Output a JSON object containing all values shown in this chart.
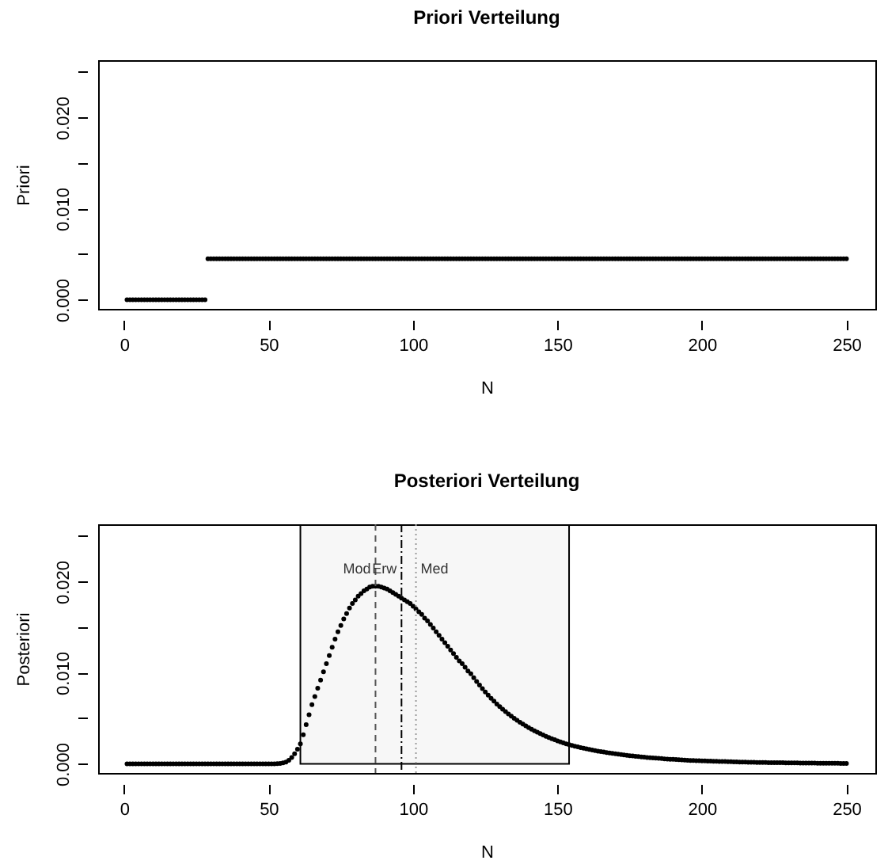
{
  "chart_data": [
    {
      "type": "scatter",
      "title": "Priori Verteilung",
      "xlabel": "N",
      "ylabel": "Priori",
      "xlim": [
        -9,
        260
      ],
      "ylim": [
        -0.001,
        0.0263
      ],
      "xticks": [
        0,
        50,
        100,
        150,
        200,
        250
      ],
      "yticks": [
        {
          "value": 0,
          "label": "0.000"
        },
        {
          "value": 0.005,
          "label": null
        },
        {
          "value": 0.01,
          "label": "0.010"
        },
        {
          "value": 0.015,
          "label": null
        },
        {
          "value": 0.02,
          "label": "0.020"
        },
        {
          "value": 0.025,
          "label": null
        }
      ],
      "marker": "circle",
      "x": [
        1,
        2,
        3,
        4,
        5,
        6,
        7,
        8,
        9,
        10,
        11,
        12,
        13,
        14,
        15,
        16,
        17,
        18,
        19,
        20,
        21,
        22,
        23,
        24,
        25,
        26,
        27,
        28,
        29,
        30,
        31,
        32,
        33,
        34,
        35,
        36,
        37,
        38,
        39,
        40,
        41,
        42,
        43,
        44,
        45,
        46,
        47,
        48,
        49,
        50,
        51,
        52,
        53,
        54,
        55,
        56,
        57,
        58,
        59,
        60,
        61,
        62,
        63,
        64,
        65,
        66,
        67,
        68,
        69,
        70,
        71,
        72,
        73,
        74,
        75,
        76,
        77,
        78,
        79,
        80,
        81,
        82,
        83,
        84,
        85,
        86,
        87,
        88,
        89,
        90,
        91,
        92,
        93,
        94,
        95,
        96,
        97,
        98,
        99,
        100,
        101,
        102,
        103,
        104,
        105,
        106,
        107,
        108,
        109,
        110,
        111,
        112,
        113,
        114,
        115,
        116,
        117,
        118,
        119,
        120,
        121,
        122,
        123,
        124,
        125,
        126,
        127,
        128,
        129,
        130,
        131,
        132,
        133,
        134,
        135,
        136,
        137,
        138,
        139,
        140,
        141,
        142,
        143,
        144,
        145,
        146,
        147,
        148,
        149,
        150,
        151,
        152,
        153,
        154,
        155,
        156,
        157,
        158,
        159,
        160,
        161,
        162,
        163,
        164,
        165,
        166,
        167,
        168,
        169,
        170,
        171,
        172,
        173,
        174,
        175,
        176,
        177,
        178,
        179,
        180,
        181,
        182,
        183,
        184,
        185,
        186,
        187,
        188,
        189,
        190,
        191,
        192,
        193,
        194,
        195,
        196,
        197,
        198,
        199,
        200,
        201,
        202,
        203,
        204,
        205,
        206,
        207,
        208,
        209,
        210,
        211,
        212,
        213,
        214,
        215,
        216,
        217,
        218,
        219,
        220,
        221,
        222,
        223,
        224,
        225,
        226,
        227,
        228,
        229,
        230,
        231,
        232,
        233,
        234,
        235,
        236,
        237,
        238,
        239,
        240,
        241,
        242,
        243,
        244,
        245,
        246,
        247,
        248,
        249,
        250
      ],
      "series": [
        {
          "color": "#000000",
          "values": [
            0,
            0,
            0,
            0,
            0,
            0,
            0,
            0,
            0,
            0,
            0,
            0,
            0,
            0,
            0,
            0,
            0,
            0,
            0,
            0,
            0,
            0,
            0,
            0,
            0,
            0,
            0,
            0,
            0.0045,
            0.0045,
            0.0045,
            0.0045,
            0.0045,
            0.0045,
            0.0045,
            0.0045,
            0.0045,
            0.0045,
            0.0045,
            0.0045,
            0.0045,
            0.0045,
            0.0045,
            0.0045,
            0.0045,
            0.0045,
            0.0045,
            0.0045,
            0.0045,
            0.0045,
            0.0045,
            0.0045,
            0.0045,
            0.0045,
            0.0045,
            0.0045,
            0.0045,
            0.0045,
            0.0045,
            0.0045,
            0.0045,
            0.0045,
            0.0045,
            0.0045,
            0.0045,
            0.0045,
            0.0045,
            0.0045,
            0.0045,
            0.0045,
            0.0045,
            0.0045,
            0.0045,
            0.0045,
            0.0045,
            0.0045,
            0.0045,
            0.0045,
            0.0045,
            0.0045,
            0.0045,
            0.0045,
            0.0045,
            0.0045,
            0.0045,
            0.0045,
            0.0045,
            0.0045,
            0.0045,
            0.0045,
            0.0045,
            0.0045,
            0.0045,
            0.0045,
            0.0045,
            0.0045,
            0.0045,
            0.0045,
            0.0045,
            0.0045,
            0.0045,
            0.0045,
            0.0045,
            0.0045,
            0.0045,
            0.0045,
            0.0045,
            0.0045,
            0.0045,
            0.0045,
            0.0045,
            0.0045,
            0.0045,
            0.0045,
            0.0045,
            0.0045,
            0.0045,
            0.0045,
            0.0045,
            0.0045,
            0.0045,
            0.0045,
            0.0045,
            0.0045,
            0.0045,
            0.0045,
            0.0045,
            0.0045,
            0.0045,
            0.0045,
            0.0045,
            0.0045,
            0.0045,
            0.0045,
            0.0045,
            0.0045,
            0.0045,
            0.0045,
            0.0045,
            0.0045,
            0.0045,
            0.0045,
            0.0045,
            0.0045,
            0.0045,
            0.0045,
            0.0045,
            0.0045,
            0.0045,
            0.0045,
            0.0045,
            0.0045,
            0.0045,
            0.0045,
            0.0045,
            0.0045,
            0.0045,
            0.0045,
            0.0045,
            0.0045,
            0.0045,
            0.0045,
            0.0045,
            0.0045,
            0.0045,
            0.0045,
            0.0045,
            0.0045,
            0.0045,
            0.0045,
            0.0045,
            0.0045,
            0.0045,
            0.0045,
            0.0045,
            0.0045,
            0.0045,
            0.0045,
            0.0045,
            0.0045,
            0.0045,
            0.0045,
            0.0045,
            0.0045,
            0.0045,
            0.0045,
            0.0045,
            0.0045,
            0.0045,
            0.0045,
            0.0045,
            0.0045,
            0.0045,
            0.0045,
            0.0045,
            0.0045,
            0.0045,
            0.0045,
            0.0045,
            0.0045,
            0.0045,
            0.0045,
            0.0045,
            0.0045,
            0.0045,
            0.0045,
            0.0045,
            0.0045,
            0.0045,
            0.0045,
            0.0045,
            0.0045,
            0.0045,
            0.0045,
            0.0045,
            0.0045,
            0.0045,
            0.0045,
            0.0045,
            0.0045,
            0.0045,
            0.0045,
            0.0045,
            0.0045,
            0.0045,
            0.0045,
            0.0045,
            0.0045,
            0.0045,
            0.0045,
            0.0045,
            0.0045,
            0.0045,
            0.0045,
            0.0045,
            0.0045,
            0.0045,
            0.0045,
            0.0045,
            0.0045,
            0.0045,
            0.0045,
            0.0045,
            0.0045,
            0.0045,
            0.0045,
            0.0045,
            0.0045,
            0.0045,
            0.0045
          ]
        }
      ]
    },
    {
      "type": "scatter",
      "title": "Posteriori Verteilung",
      "xlabel": "N",
      "ylabel": "Posteriori",
      "xlim": [
        -9,
        260
      ],
      "ylim": [
        -0.001,
        0.0263
      ],
      "xticks": [
        0,
        50,
        100,
        150,
        200,
        250
      ],
      "yticks": [
        {
          "value": 0,
          "label": "0.000"
        },
        {
          "value": 0.005,
          "label": null
        },
        {
          "value": 0.01,
          "label": "0.010"
        },
        {
          "value": 0.015,
          "label": null
        },
        {
          "value": 0.02,
          "label": "0.020"
        },
        {
          "value": 0.025,
          "label": null
        }
      ],
      "marker": "circle",
      "x": [
        1,
        2,
        3,
        4,
        5,
        6,
        7,
        8,
        9,
        10,
        11,
        12,
        13,
        14,
        15,
        16,
        17,
        18,
        19,
        20,
        21,
        22,
        23,
        24,
        25,
        26,
        27,
        28,
        29,
        30,
        31,
        32,
        33,
        34,
        35,
        36,
        37,
        38,
        39,
        40,
        41,
        42,
        43,
        44,
        45,
        46,
        47,
        48,
        49,
        50,
        51,
        52,
        53,
        54,
        55,
        56,
        57,
        58,
        59,
        60,
        61,
        62,
        63,
        64,
        65,
        66,
        67,
        68,
        69,
        70,
        71,
        72,
        73,
        74,
        75,
        76,
        77,
        78,
        79,
        80,
        81,
        82,
        83,
        84,
        85,
        86,
        87,
        88,
        89,
        90,
        91,
        92,
        93,
        94,
        95,
        96,
        97,
        98,
        99,
        100,
        101,
        102,
        103,
        104,
        105,
        106,
        107,
        108,
        109,
        110,
        111,
        112,
        113,
        114,
        115,
        116,
        117,
        118,
        119,
        120,
        121,
        122,
        123,
        124,
        125,
        126,
        127,
        128,
        129,
        130,
        131,
        132,
        133,
        134,
        135,
        136,
        137,
        138,
        139,
        140,
        141,
        142,
        143,
        144,
        145,
        146,
        147,
        148,
        149,
        150,
        151,
        152,
        153,
        154,
        155,
        156,
        157,
        158,
        159,
        160,
        161,
        162,
        163,
        164,
        165,
        166,
        167,
        168,
        169,
        170,
        171,
        172,
        173,
        174,
        175,
        176,
        177,
        178,
        179,
        180,
        181,
        182,
        183,
        184,
        185,
        186,
        187,
        188,
        189,
        190,
        191,
        192,
        193,
        194,
        195,
        196,
        197,
        198,
        199,
        200,
        201,
        202,
        203,
        204,
        205,
        206,
        207,
        208,
        209,
        210,
        211,
        212,
        213,
        214,
        215,
        216,
        217,
        218,
        219,
        220,
        221,
        222,
        223,
        224,
        225,
        226,
        227,
        228,
        229,
        230,
        231,
        232,
        233,
        234,
        235,
        236,
        237,
        238,
        239,
        240,
        241,
        242,
        243,
        244,
        245,
        246,
        247,
        248,
        249,
        250
      ],
      "series": [
        {
          "color": "#000000",
          "values": [
            0,
            0,
            0,
            0,
            0,
            0,
            0,
            0,
            0,
            0,
            0,
            0,
            0,
            0,
            0,
            0,
            0,
            0,
            0,
            0,
            0,
            0,
            0,
            0,
            0,
            0,
            0,
            0,
            0,
            0,
            0,
            0,
            0,
            0,
            0,
            0,
            0,
            0,
            0,
            0,
            0,
            0,
            0,
            0,
            0,
            0,
            0,
            0,
            0,
            0,
            0,
            0,
            2e-05,
            5e-05,
            0.0001,
            0.0002,
            0.0004,
            0.0007,
            0.0011,
            0.0016,
            0.0022,
            0.0032,
            0.0043,
            0.0054,
            0.0065,
            0.0074,
            0.0083,
            0.0092,
            0.0101,
            0.011,
            0.0119,
            0.0128,
            0.0137,
            0.0145,
            0.0152,
            0.0159,
            0.0165,
            0.0171,
            0.0176,
            0.018,
            0.0184,
            0.0187,
            0.019,
            0.0192,
            0.0194,
            0.0195,
            0.0195,
            0.0195,
            0.0194,
            0.0193,
            0.0192,
            0.019,
            0.0188,
            0.0186,
            0.0184,
            0.0182,
            0.018,
            0.0178,
            0.0176,
            0.0173,
            0.017,
            0.0167,
            0.0164,
            0.016,
            0.0157,
            0.0153,
            0.0149,
            0.0145,
            0.0141,
            0.0137,
            0.0133,
            0.0129,
            0.0125,
            0.0121,
            0.0117,
            0.0113,
            0.011,
            0.0106,
            0.0102,
            0.0099,
            0.00946,
            0.00904,
            0.00864,
            0.00825,
            0.00789,
            0.00754,
            0.0072,
            0.00688,
            0.00657,
            0.00628,
            0.006,
            0.00573,
            0.00548,
            0.00524,
            0.005,
            0.00478,
            0.00457,
            0.00436,
            0.00417,
            0.00398,
            0.00381,
            0.00364,
            0.00348,
            0.00332,
            0.00317,
            0.00303,
            0.0029,
            0.00277,
            0.00265,
            0.00253,
            0.00242,
            0.00231,
            0.0022,
            0.00211,
            0.00203,
            0.00194,
            0.00187,
            0.00179,
            0.00172,
            0.00165,
            0.00159,
            0.00152,
            0.00146,
            0.0014,
            0.00135,
            0.0013,
            0.00124,
            0.00119,
            0.00115,
            0.0011,
            0.00106,
            0.00102,
            0.00098,
            0.00094,
            0.0009,
            0.00086,
            0.00083,
            0.0008,
            0.00076,
            0.00073,
            0.0007,
            0.00068,
            0.00065,
            0.00062,
            0.0006,
            0.00058,
            0.00055,
            0.00053,
            0.00051,
            0.00049,
            0.00047,
            0.00045,
            0.00043,
            0.00041,
            0.0004,
            0.00038,
            0.00037,
            0.00035,
            0.00034,
            0.00033,
            0.00032,
            0.00031,
            0.0003,
            0.00029,
            0.00028,
            0.00027,
            0.00026,
            0.00025,
            0.00024,
            0.00023,
            0.00022,
            0.00021,
            0.0002,
            0.0002,
            0.00019,
            0.00018,
            0.00018,
            0.00017,
            0.00016,
            0.00016,
            0.00015,
            0.00015,
            0.00014,
            0.00014,
            0.00013,
            0.00013,
            0.00012,
            0.00012,
            0.00011,
            0.00011,
            0.0001,
            0.0001,
            0.0001,
            9e-05,
            9e-05,
            9e-05,
            8e-05,
            8e-05,
            8e-05,
            7e-05,
            7e-05,
            7e-05,
            7e-05,
            6e-05,
            6e-05,
            6e-05,
            6e-05,
            5e-05,
            5e-05,
            5e-05
          ]
        }
      ],
      "bands": [
        {
          "axis": "x",
          "from": 61,
          "to": 154,
          "color": "#000000"
        }
      ],
      "ref_lines": [
        {
          "axis": "x",
          "value": 87,
          "label": "Mod",
          "color": "#555555",
          "line_style": "dashed"
        },
        {
          "axis": "x",
          "value": 96,
          "label": "Erw",
          "color": "#000000",
          "line_style": "dashdot"
        },
        {
          "axis": "x",
          "value": 101,
          "label": "Med",
          "color": "#999999",
          "line_style": "dotted"
        }
      ]
    }
  ]
}
